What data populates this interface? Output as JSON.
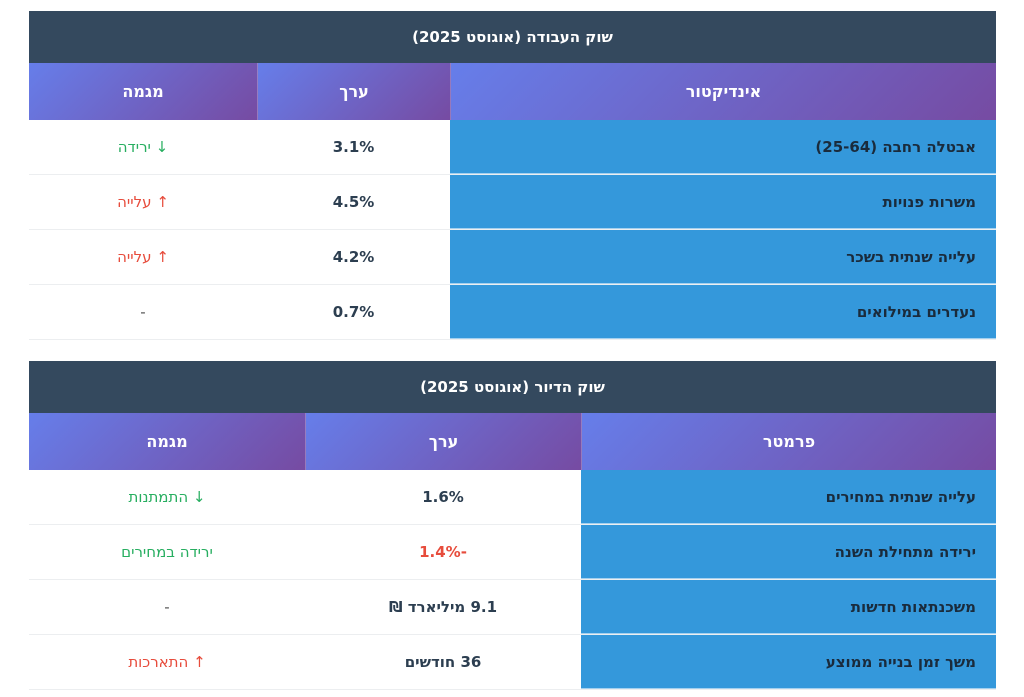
{
  "labor": {
    "title": "שוק העבודה (אוגוסט 2025)",
    "headers": {
      "name": "אינדיקטור",
      "value": "ערך",
      "trend": "מגמה"
    },
    "rows": [
      {
        "name": "אבטלה רחבה (25-64)",
        "value": "3.1%",
        "trend": "↓ ירידה"
      },
      {
        "name": "משרות פנויות",
        "value": "4.5%",
        "trend": "↑ עלייה"
      },
      {
        "name": "עלייה שנתית בשכר",
        "value": "4.2%",
        "trend": "↑ עלייה"
      },
      {
        "name": "נעדרים במילואים",
        "value": "0.7%",
        "trend": "-"
      }
    ]
  },
  "housing": {
    "title": "שוק הדיור (אוגוסט 2025)",
    "headers": {
      "name": "פרמטר",
      "value": "ערך",
      "trend": "מגמה"
    },
    "rows": [
      {
        "name": "עלייה שנתית במחירים",
        "value": "1.6%",
        "trend": "↓ התמתנות"
      },
      {
        "name": "ירידה מתחילת השנה",
        "value": "-1.4%",
        "trend": "ירידה במחירים"
      },
      {
        "name": "משכנתאות חדשות",
        "value": "9.1 מיליארד ₪",
        "trend": "-"
      },
      {
        "name": "משך זמן בנייה ממוצע",
        "value": "36 חודשים",
        "trend": "↑ התארכות"
      }
    ]
  },
  "colors": {
    "title_bg": "#34495e",
    "header_gradient": [
      "#667eea",
      "#764ba2"
    ],
    "name_bg": "#3498db",
    "up": "#e74c3c",
    "down": "#27ae60"
  }
}
